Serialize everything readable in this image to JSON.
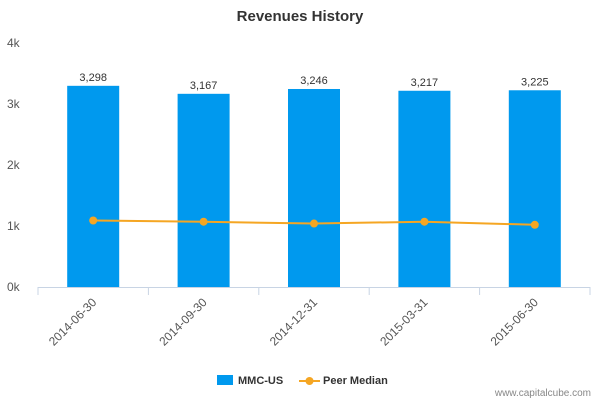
{
  "chart_data": {
    "type": "bar",
    "title": "Revenues History",
    "categories": [
      "2014-06-30",
      "2014-09-30",
      "2014-12-31",
      "2015-03-31",
      "2015-06-30"
    ],
    "series": [
      {
        "name": "MMC-US",
        "type": "bar",
        "color": "#0099ee",
        "values": [
          3298,
          3167,
          3246,
          3217,
          3225
        ]
      },
      {
        "name": "Peer Median",
        "type": "line",
        "color": "#f5a623",
        "values": [
          1090,
          1070,
          1040,
          1070,
          1020
        ]
      }
    ],
    "data_labels": [
      "3,298",
      "3,167",
      "3,246",
      "3,217",
      "3,225"
    ],
    "yticks": [
      {
        "value": 0,
        "label": "0k"
      },
      {
        "value": 1000,
        "label": "1k"
      },
      {
        "value": 2000,
        "label": "2k"
      },
      {
        "value": 3000,
        "label": "3k"
      },
      {
        "value": 4000,
        "label": "4k"
      }
    ],
    "ylim": [
      0,
      4000
    ],
    "grid": false,
    "legend_position": "bottom-center"
  },
  "watermark": "www.capitalcube.com"
}
